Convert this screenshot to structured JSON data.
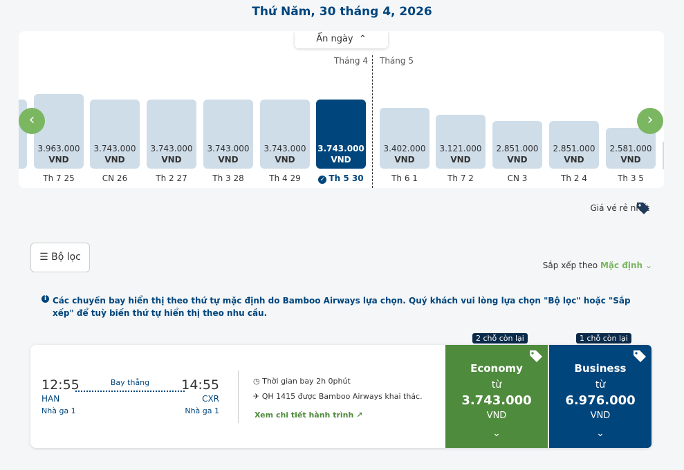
{
  "header": {
    "title": "Thứ Năm, 30 tháng 4, 2026"
  },
  "calendar": {
    "toggle": "Ẩn ngày",
    "months": [
      "Tháng 4",
      "Tháng 5"
    ],
    "selected_index": 5,
    "days": [
      {
        "price": "3.963.000",
        "currency": "VND",
        "label": "Th 7 25"
      },
      {
        "price": "3.743.000",
        "currency": "VND",
        "label": "CN 26"
      },
      {
        "price": "3.743.000",
        "currency": "VND",
        "label": "Th 2 27"
      },
      {
        "price": "3.743.000",
        "currency": "VND",
        "label": "Th 3 28"
      },
      {
        "price": "3.743.000",
        "currency": "VND",
        "label": "Th 4 29"
      },
      {
        "price": "3.743.000",
        "currency": "VND",
        "label": "Th 5 30"
      },
      {
        "price": "3.402.000",
        "currency": "VND",
        "label": "Th 6 1"
      },
      {
        "price": "3.121.000",
        "currency": "VND",
        "label": "Th 7 2"
      },
      {
        "price": "2.851.000",
        "currency": "VND",
        "label": "CN 3"
      },
      {
        "price": "2.851.000",
        "currency": "VND",
        "label": "Th 2 4"
      },
      {
        "price": "2.581.000",
        "currency": "VND",
        "label": "Th 3 5"
      }
    ],
    "cheapest": "Giá vé rẻ nhất"
  },
  "toolbar": {
    "filter": "Bộ lọc",
    "sort_label": "Sắp xếp theo",
    "sort_value": "Mặc định"
  },
  "notice": "Các chuyến bay hiển thị theo thứ tự mặc định do Bamboo Airways lựa chọn. Quý khách vui lòng lựa chọn \"Bộ lọc\" hoặc \"Sắp xếp\" để tuỳ biến thứ tự hiển thị theo nhu cầu.",
  "flight": {
    "dep_time": "12:55",
    "dep_code": "HAN",
    "dep_terminal": "Nhà ga 1",
    "stop": "Bay thẳng",
    "arr_time": "14:55",
    "arr_code": "CXR",
    "arr_terminal": "Nhà ga 1",
    "duration_label": "Thời gian bay",
    "duration": "2h 0phút",
    "operator": "QH 1415 được Bamboo Airways khai thác.",
    "details": "Xem chi tiết hành trình",
    "fares": [
      {
        "badge": "2 chỗ còn lại",
        "class": "Economy",
        "from": "từ",
        "price": "3.743.000",
        "currency": "VND",
        "color": "#4e8b3c"
      },
      {
        "badge": "1 chỗ còn lại",
        "class": "Business",
        "from": "từ",
        "price": "6.976.000",
        "currency": "VND",
        "color": "#00457c"
      }
    ]
  }
}
